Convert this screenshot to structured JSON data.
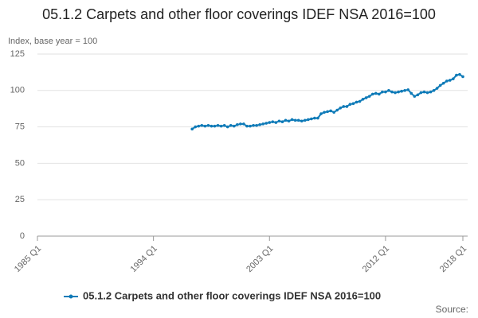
{
  "chart_data": {
    "type": "line",
    "title": "05.1.2 Carpets and other floor coverings IDEF NSA 2016=100",
    "y_label": "Index, base year = 100",
    "source": "Source:",
    "categories": [
      "1985 Q1",
      null,
      null,
      null,
      null,
      null,
      null,
      null,
      null,
      null,
      null,
      null,
      null,
      null,
      null,
      null,
      null,
      null,
      null,
      null,
      null,
      null,
      null,
      null,
      null,
      null,
      null,
      null,
      null,
      null,
      null,
      null,
      null,
      null,
      null,
      null,
      "1994 Q1",
      null,
      null,
      null,
      null,
      null,
      null,
      null,
      null,
      null,
      null,
      null,
      null,
      null,
      null,
      null,
      null,
      null,
      null,
      null,
      null,
      null,
      null,
      null,
      null,
      null,
      null,
      null,
      null,
      null,
      null,
      null,
      null,
      null,
      null,
      null,
      "2003 Q1",
      null,
      null,
      null,
      null,
      null,
      null,
      null,
      null,
      null,
      null,
      null,
      null,
      null,
      null,
      null,
      null,
      null,
      null,
      null,
      null,
      null,
      null,
      null,
      null,
      null,
      null,
      null,
      null,
      null,
      null,
      null,
      null,
      null,
      null,
      null,
      "2012 Q1",
      null,
      null,
      null,
      null,
      null,
      null,
      null,
      null,
      null,
      null,
      null,
      null,
      null,
      null,
      null,
      null,
      null,
      null,
      null,
      null,
      null,
      null,
      null,
      "2018 Q1"
    ],
    "series": [
      {
        "name": "05.1.2 Carpets and other floor coverings IDEF NSA 2016=100",
        "color": "#0f7bb8",
        "values": [
          null,
          null,
          null,
          null,
          null,
          null,
          null,
          null,
          null,
          null,
          null,
          null,
          null,
          null,
          null,
          null,
          null,
          null,
          null,
          null,
          null,
          null,
          null,
          null,
          null,
          null,
          null,
          null,
          null,
          null,
          null,
          null,
          null,
          null,
          null,
          null,
          null,
          null,
          null,
          null,
          null,
          null,
          null,
          null,
          null,
          null,
          null,
          null,
          73.5,
          75,
          75.5,
          76,
          75.5,
          76,
          75.5,
          75.5,
          76,
          75.5,
          76,
          75,
          76,
          75.5,
          76.5,
          77,
          77,
          75.5,
          75.5,
          76,
          76,
          76.5,
          77,
          77.5,
          78,
          78.5,
          78,
          79,
          78.5,
          79.5,
          79,
          80,
          79.5,
          79.5,
          79,
          79.5,
          80,
          80.5,
          81,
          81,
          84,
          85,
          85.5,
          86,
          85,
          86.5,
          88,
          89,
          89,
          90.5,
          91,
          92,
          92.5,
          94,
          95,
          96,
          97.5,
          98,
          97.5,
          99,
          99,
          100,
          99,
          98.5,
          99,
          99.5,
          100,
          100.5,
          98,
          96,
          97,
          98.5,
          99,
          98.5,
          99,
          100,
          101.5,
          103.5,
          105,
          106.5,
          107,
          108,
          110.5,
          111,
          109.5
        ]
      }
    ],
    "ylim": [
      0,
      125
    ],
    "yticks": [
      0,
      25,
      50,
      75,
      100,
      125
    ],
    "grid": true
  }
}
